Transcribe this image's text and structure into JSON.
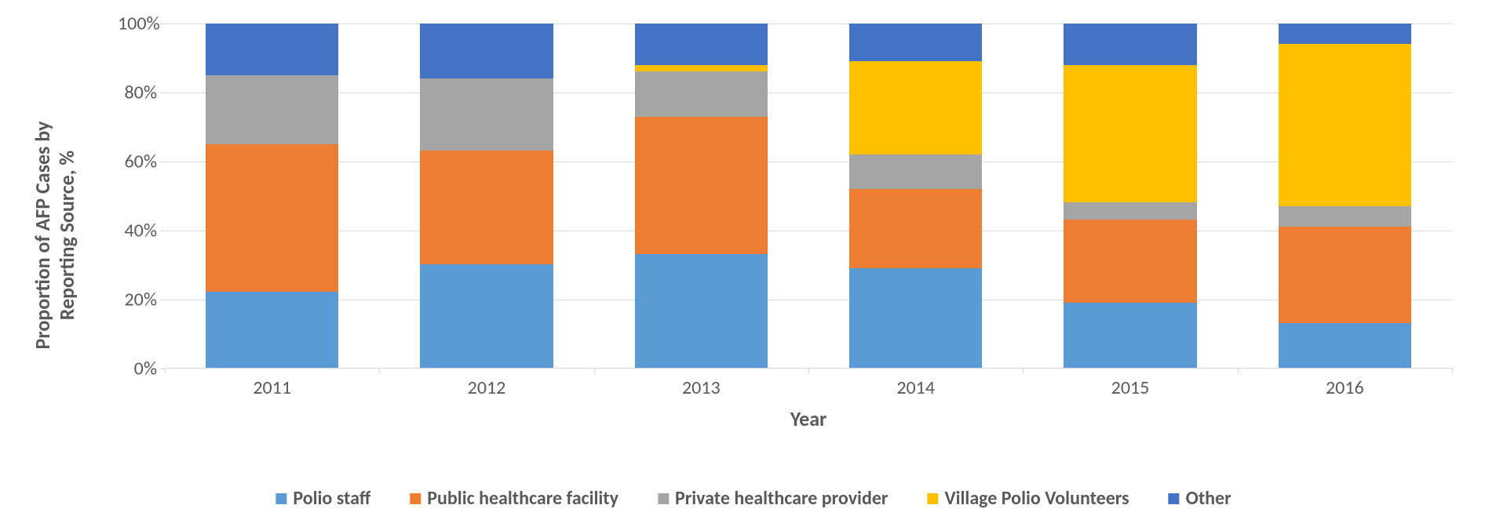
{
  "chart": {
    "type": "stacked-bar",
    "y_axis_title": "Proportion of AFP Cases by\nReporting Source, %",
    "x_axis_title": "Year",
    "categories": [
      "2011",
      "2012",
      "2013",
      "2014",
      "2015",
      "2016"
    ],
    "series": [
      {
        "name": "Polio staff",
        "color": "#5b9bd5",
        "values": [
          22,
          30,
          33,
          29,
          19,
          13
        ]
      },
      {
        "name": "Public healthcare facility",
        "color": "#ed7d31",
        "values": [
          43,
          33,
          40,
          23,
          24,
          28
        ]
      },
      {
        "name": "Private healthcare provider",
        "color": "#a5a5a5",
        "values": [
          20,
          21,
          13,
          10,
          5,
          6
        ]
      },
      {
        "name": "Village Polio Volunteers",
        "color": "#ffc000",
        "values": [
          0,
          0,
          2,
          27,
          40,
          47
        ]
      },
      {
        "name": "Other",
        "color": "#4472c4",
        "values": [
          15,
          16,
          12,
          11,
          12,
          6
        ]
      }
    ],
    "y_ticks": [
      0,
      20,
      40,
      60,
      80,
      100
    ],
    "y_tick_labels": [
      "0%",
      "20%",
      "40%",
      "60%",
      "80%",
      "100%"
    ],
    "ylim": [
      0,
      100
    ],
    "bar_width_ratio": 0.62,
    "background_color": "#ffffff",
    "grid_color": "#d9d9d9",
    "axis_text_color": "#595959",
    "title_fontsize": 26,
    "tick_fontsize": 24,
    "legend_fontsize": 24
  }
}
